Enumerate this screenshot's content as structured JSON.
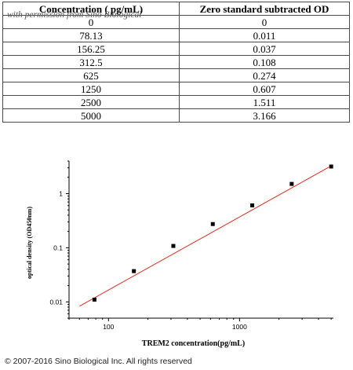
{
  "table": {
    "headers": [
      "Concentration ( pg/mL)",
      "Zero standard subtracted OD"
    ],
    "watermark": "with permission from Sino Biological",
    "rows": [
      [
        "0",
        "0"
      ],
      [
        "78.13",
        "0.011"
      ],
      [
        "156.25",
        "0.037"
      ],
      [
        "312.5",
        "0.108"
      ],
      [
        "625",
        "0.274"
      ],
      [
        "1250",
        "0.607"
      ],
      [
        "2500",
        "1.511"
      ],
      [
        "5000",
        "3.166"
      ]
    ]
  },
  "chart_data": {
    "type": "scatter",
    "xlabel": "TREM2 concentration(pg/mL)",
    "ylabel": "optical density (OD450nm)",
    "xscale": "log",
    "yscale": "log",
    "xlim": [
      50,
      5200
    ],
    "ylim": [
      0.005,
      4
    ],
    "xticks": [
      {
        "v": 100,
        "label": "100"
      },
      {
        "v": 1000,
        "label": "1000"
      }
    ],
    "yticks": [
      {
        "v": 0.01,
        "label": "0.01"
      },
      {
        "v": 0.1,
        "label": "0.1"
      },
      {
        "v": 1,
        "label": "1"
      }
    ],
    "points": [
      {
        "x": 78.13,
        "y": 0.011
      },
      {
        "x": 156.25,
        "y": 0.037
      },
      {
        "x": 312.5,
        "y": 0.108
      },
      {
        "x": 625,
        "y": 0.274
      },
      {
        "x": 1250,
        "y": 0.607
      },
      {
        "x": 2500,
        "y": 1.511
      },
      {
        "x": 5000,
        "y": 3.166
      }
    ],
    "fit_line": {
      "x": [
        60,
        4800
      ],
      "y": [
        0.0083,
        3.08
      ]
    },
    "marker_color": "#000000",
    "line_color": "#e8291c",
    "grid": false
  },
  "footer": {
    "copyright": "© 2007-2016 Sino Biological Inc. All rights reserved"
  }
}
